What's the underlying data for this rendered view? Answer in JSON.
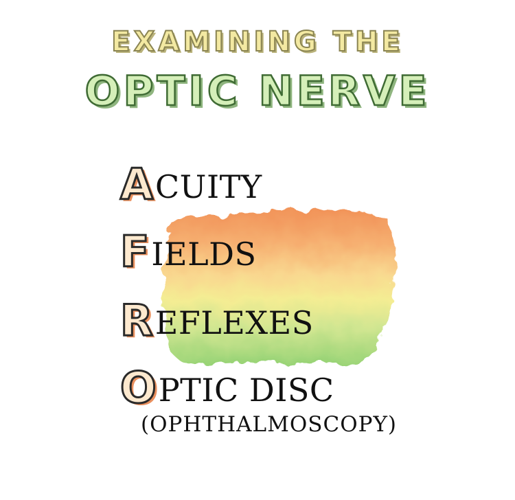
{
  "title": {
    "line1": "EXAMINING THE",
    "line2": "OPTIC NERVE"
  },
  "mnemonic": [
    {
      "letter": "A",
      "rest": "CUITY"
    },
    {
      "letter": "F",
      "rest": "IELDS"
    },
    {
      "letter": "R",
      "rest": "EFLEXES"
    },
    {
      "letter": "O",
      "rest": "PTIC DISC"
    }
  ],
  "subtitle": "(OPHTHALMOSCOPY)",
  "colors": {
    "wash_top": "#f08a4b",
    "wash_upper_mid": "#f9c47a",
    "wash_mid": "#f4ec8a",
    "wash_low": "#cde488",
    "wash_bottom": "#8fd06a",
    "letter_fill": "#fde9cf",
    "letter_shadow": "#e98f5d",
    "title_line1_fill": "#f3e9a2",
    "title_line2_fill": "#d5efb9"
  }
}
